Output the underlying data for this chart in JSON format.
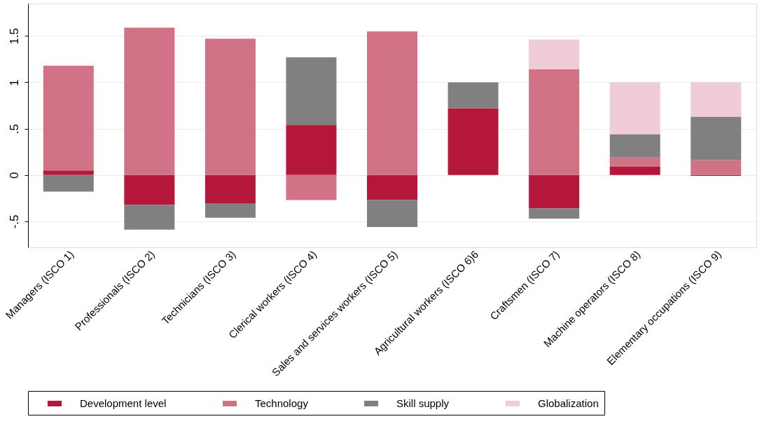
{
  "chart_data": {
    "type": "bar",
    "stacked": true,
    "categories": [
      "Managers (ISCO 1)",
      "Professionals (ISCO 2)",
      "Technicians (ISCO 3)",
      "Clerical workers (ISCO 4)",
      "Sales and services workers (ISCO 5)",
      "Agricultural workers (ISCO 6)6",
      "Craftsmen (ISCO 7)",
      "Machine operators (ISCO 8)",
      "Elementary occupations (ISCO 9)"
    ],
    "series": [
      {
        "name": "Development level",
        "color": "#b5173b",
        "values": [
          0.05,
          -0.32,
          -0.31,
          0.54,
          -0.27,
          0.72,
          -0.36,
          0.09,
          -0.01
        ]
      },
      {
        "name": "Technology",
        "color": "#d27287",
        "values": [
          1.13,
          1.59,
          1.47,
          -0.27,
          1.55,
          null,
          1.14,
          0.1,
          0.16
        ]
      },
      {
        "name": "Skill supply",
        "color": "#808080",
        "values": [
          -0.18,
          -0.27,
          -0.15,
          0.73,
          -0.29,
          0.28,
          -0.11,
          0.25,
          0.47
        ]
      },
      {
        "name": "Globalization",
        "color": "#efccd6",
        "values": [
          null,
          null,
          null,
          null,
          null,
          null,
          0.32,
          0.56,
          0.37
        ]
      }
    ],
    "ylim": [
      -0.78,
      1.85
    ],
    "yticks": [
      {
        "value": -0.5,
        "label": "-.5"
      },
      0,
      {
        "value": 0.5,
        "label": ".5"
      },
      1,
      1.5
    ],
    "grid": "y",
    "legend": "bottom"
  }
}
